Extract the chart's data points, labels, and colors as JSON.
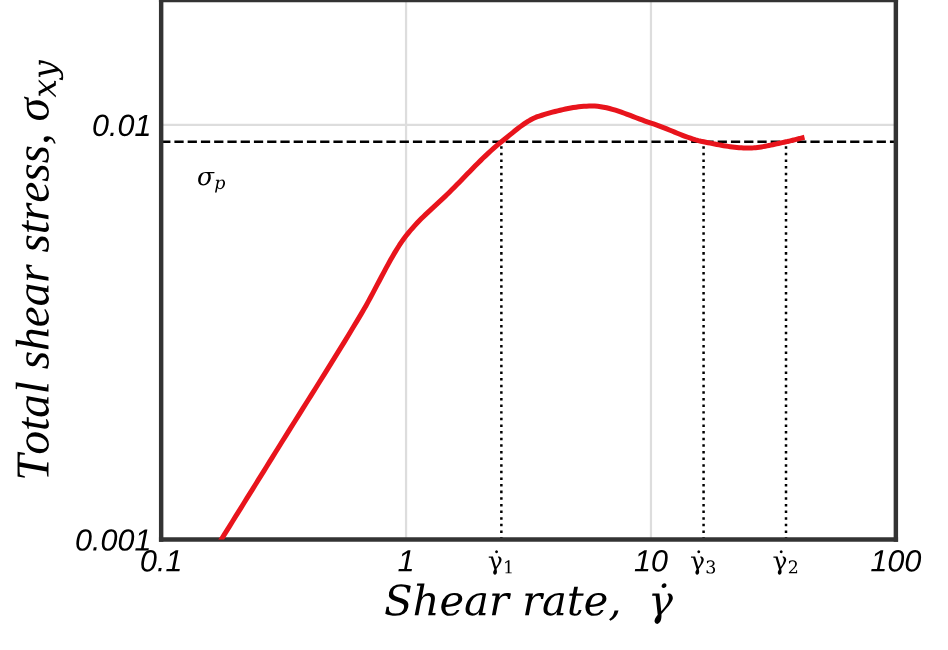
{
  "chart_data": {
    "type": "line",
    "xlabel": "Shear rate,  γ̇",
    "ylabel": "Total shear stress, σ$_{xy}$",
    "log": "xy",
    "x": [
      0.176,
      0.3,
      0.658,
      1,
      1.5,
      2.45,
      3.5,
      5.73,
      10,
      16.4,
      24.9,
      35.6,
      41.4
    ],
    "series": [
      {
        "color": "#e8141c",
        "values": [
          0.001,
          0.00166,
          0.00351,
          0.0054,
          0.00687,
          0.0091,
          0.0105,
          0.0111,
          0.0101,
          0.0091,
          0.00879,
          0.0091,
          0.0093
        ]
      }
    ],
    "xlim": [
      0.1,
      100
    ],
    "ylim": [
      0.001,
      0.02
    ],
    "xticks": [
      0.1,
      1,
      10,
      100
    ],
    "yticks": [
      0.001,
      0.01
    ],
    "ref_lines": [
      {
        "axis": "y",
        "value": 0.0091,
        "line_style": "dashed",
        "color": "#000000"
      },
      {
        "axis": "x",
        "value": 2.45,
        "label": "γ̇$_{1}$",
        "line_style": "dotted",
        "color": "#000000"
      },
      {
        "axis": "x",
        "value": 16.4,
        "label": "γ̇$_{3}$",
        "line_style": "dotted",
        "color": "#000000"
      },
      {
        "axis": "x",
        "value": 35.6,
        "label": "γ̇$_{2}$",
        "line_style": "dotted",
        "color": "#000000"
      }
    ],
    "annotations": [
      {
        "text": "σ$_{p}$",
        "x": 0.14,
        "y": 0.0091
      }
    ],
    "grid": true,
    "line_style": "solid",
    "marker": "none",
    "legend": false
  }
}
